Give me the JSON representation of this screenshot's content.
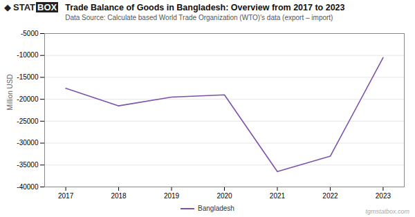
{
  "chart_data": {
    "type": "line",
    "title": "Trade Balance of Goods in Bangladesh: Overview from 2017 to 2023",
    "subtitle": "Data Source: Calculate based World Trade Organization (WTO)'s data (export – import)",
    "ylabel": "Million USD",
    "x": [
      2017,
      2018,
      2019,
      2020,
      2021,
      2022,
      2023
    ],
    "series": [
      {
        "name": "Bangladesh",
        "color": "#7B52AB",
        "values": [
          -17500,
          -21500,
          -19500,
          -19000,
          -36500,
          -33000,
          -10500
        ]
      }
    ],
    "xlim": [
      2016.6,
      2023.4
    ],
    "xticks": [
      2017,
      2018,
      2019,
      2020,
      2021,
      2022,
      2023
    ],
    "ylim": [
      -40000,
      -5000
    ],
    "yticks": [
      -40000,
      -35000,
      -30000,
      -25000,
      -20000,
      -15000,
      -10000,
      -5000
    ],
    "grid": true,
    "annotations": [
      "◆",
      "STAT",
      "BOX",
      "tgmstatbox.com"
    ]
  }
}
